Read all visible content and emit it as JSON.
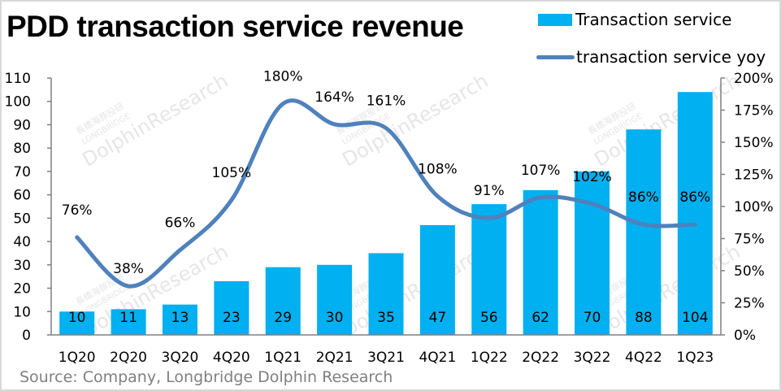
{
  "chart_data": {
    "type": "bar",
    "title": "PDD transaction service revenue",
    "categories": [
      "1Q20",
      "2Q20",
      "3Q20",
      "4Q20",
      "1Q21",
      "2Q21",
      "3Q21",
      "4Q21",
      "1Q22",
      "2Q22",
      "3Q22",
      "4Q22",
      "1Q23"
    ],
    "series": [
      {
        "name": "Transaction service",
        "type": "bar",
        "axis": "left",
        "color": "#00b0f0",
        "values": [
          10,
          11,
          13,
          23,
          29,
          30,
          35,
          47,
          56,
          62,
          70,
          88,
          104
        ]
      },
      {
        "name": "transaction service yoy",
        "type": "line",
        "axis": "right",
        "color": "#4f81bd",
        "values": [
          76,
          38,
          66,
          105,
          180,
          164,
          161,
          108,
          91,
          107,
          102,
          86,
          86
        ],
        "labels": [
          "76%",
          "38%",
          "66%",
          "105%",
          "180%",
          "164%",
          "161%",
          "108%",
          "91%",
          "107%",
          "102%",
          "86%",
          "86%"
        ]
      }
    ],
    "bar_labels": [
      "10",
      "11",
      "13",
      "23",
      "29",
      "30",
      "35",
      "47",
      "56",
      "62",
      "70",
      "88",
      "104"
    ],
    "y_left": {
      "range": [
        0,
        110
      ],
      "ticks": [
        "0",
        "10",
        "20",
        "30",
        "40",
        "50",
        "60",
        "70",
        "80",
        "90",
        "100",
        "110"
      ]
    },
    "y_right": {
      "range": [
        0,
        200
      ],
      "ticks": [
        "0%",
        "25%",
        "50%",
        "75%",
        "100%",
        "125%",
        "150%",
        "175%",
        "200%"
      ]
    },
    "xlabel": "",
    "ylabel": "",
    "legend": "top-right",
    "grid": false
  },
  "legend": {
    "bar_label": "Transaction service",
    "line_label": "transaction service yoy"
  },
  "source": "Source: Company, Longbridge Dolphin Research",
  "watermark": {
    "line1": "長橋海豚投研",
    "line2": "LONGBRIDGE",
    "line3": "DolphinResearch"
  }
}
